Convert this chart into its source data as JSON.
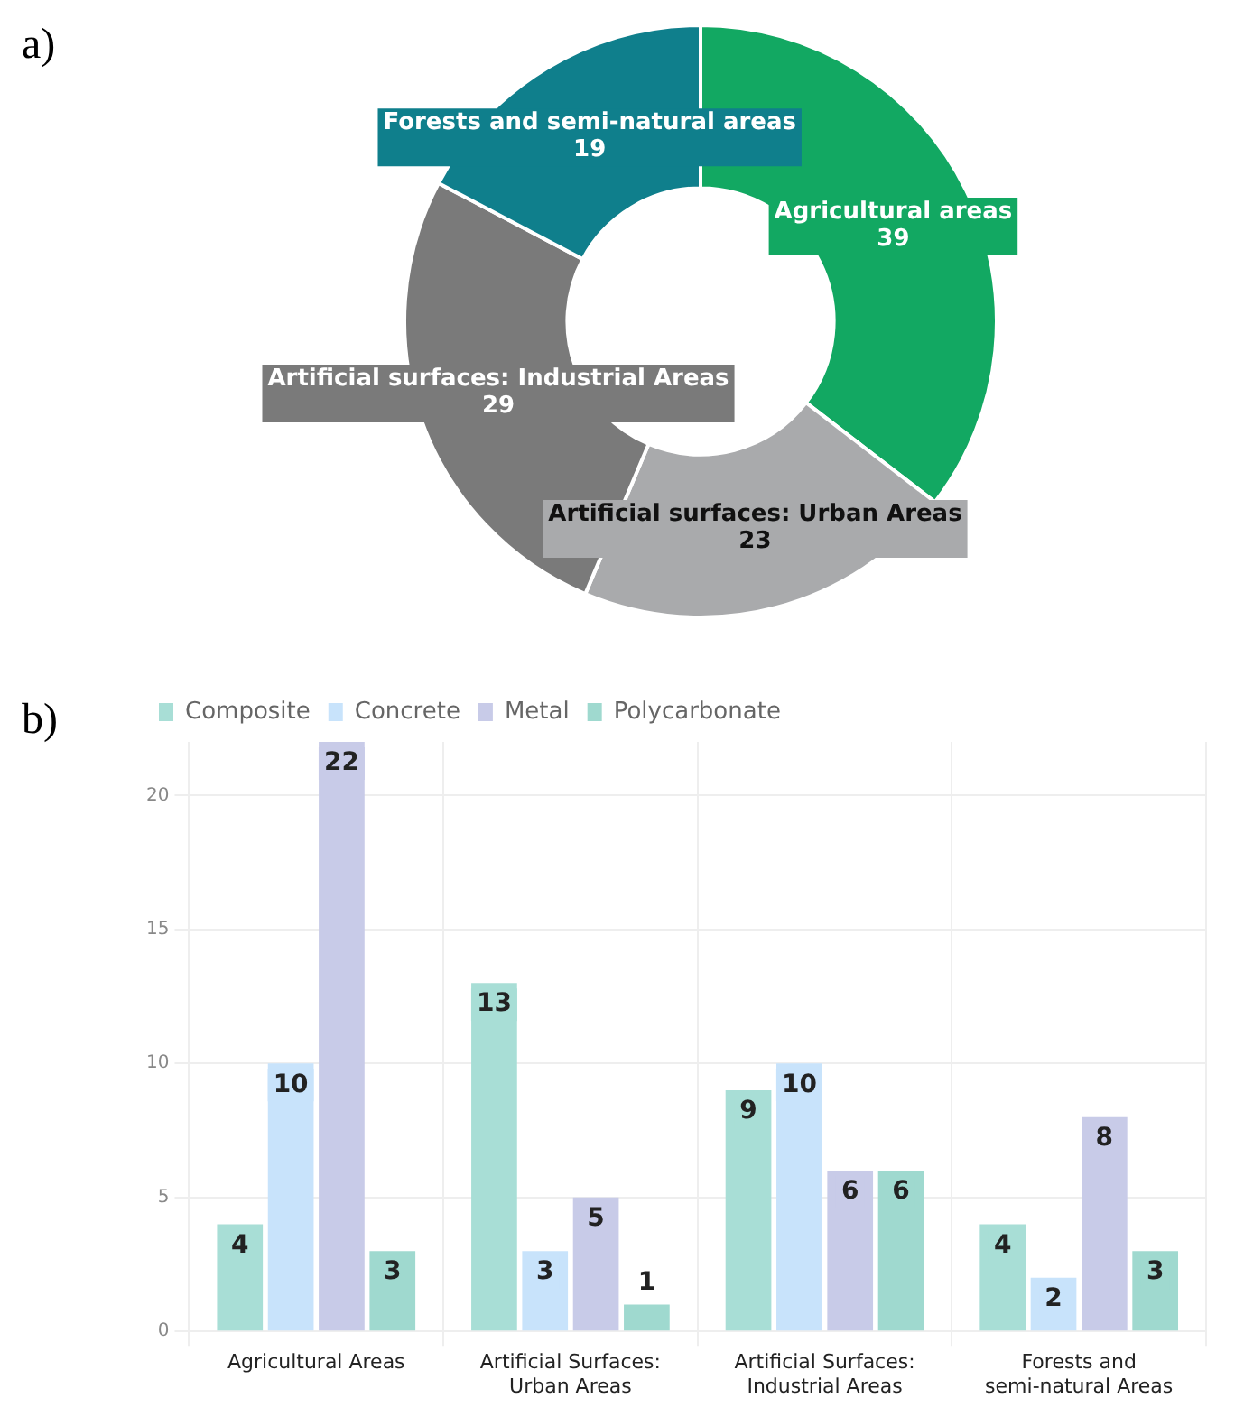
{
  "chart_data": [
    {
      "type": "donut",
      "title": "a)",
      "categories": [
        "Agricultural areas",
        "Artificial surfaces: Urban Areas",
        "Artificial surfaces: Industrial Areas",
        "Forests and semi-natural areas"
      ],
      "values": [
        39,
        23,
        29,
        19
      ],
      "colors": [
        "#12a862",
        "#a9aaac",
        "#7a7a7a",
        "#0f7f8c"
      ],
      "data_labels": true,
      "legend": false
    },
    {
      "type": "bar",
      "title": "b)",
      "categories": [
        "Agricultural Areas",
        "Artificial Surfaces: Urban Areas",
        "Artificial Surfaces: Industrial Areas",
        "Forests and semi-natural Areas"
      ],
      "series": [
        {
          "name": "Composite",
          "color": "#a8ded6",
          "values": [
            4,
            13,
            9,
            4
          ]
        },
        {
          "name": "Concrete",
          "color": "#c8e3fb",
          "values": [
            10,
            3,
            10,
            2
          ]
        },
        {
          "name": "Metal",
          "color": "#c8cbe8",
          "values": [
            22,
            5,
            6,
            8
          ]
        },
        {
          "name": "Polycarbonate",
          "color": "#9fd9cf",
          "values": [
            3,
            1,
            6,
            3
          ]
        }
      ],
      "ylim": [
        0,
        22
      ],
      "yticks": [
        0,
        5,
        10,
        15,
        20
      ],
      "grid": true,
      "legend": "top left",
      "data_labels": true
    }
  ]
}
